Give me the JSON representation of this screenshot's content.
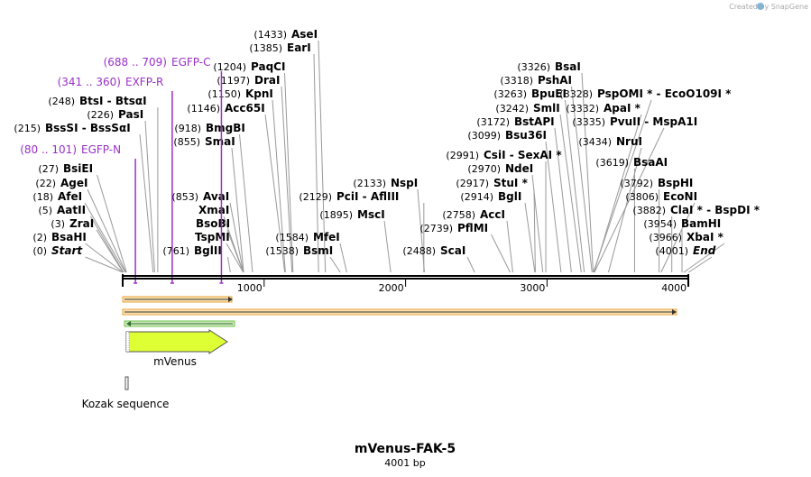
{
  "title": "mVenus-FAK-5",
  "subtitle": "4001 bp",
  "credit": "Created by SnapGene",
  "sequence_length": 4001,
  "axis_ticks": [
    "1000",
    "2000",
    "3000",
    "4000"
  ],
  "axis_tick_values": [
    1000,
    2000,
    3000,
    4000
  ],
  "feature_label": "mVenus",
  "kozak_label": "Kozak sequence",
  "colors": {
    "primer": "#9b30c9",
    "feature": "#ddff33",
    "orf": "#e8a33a",
    "green": "#2e8b2e"
  },
  "sites": [
    {
      "pos": "(0)",
      "name": "Start",
      "italic": true,
      "bp": 0
    },
    {
      "pos": "(2)",
      "name": "BsaHI",
      "bp": 2
    },
    {
      "pos": "(3)",
      "name": "ZraI",
      "bp": 3
    },
    {
      "pos": "(5)",
      "name": "AatII",
      "bp": 5
    },
    {
      "pos": "(18)",
      "name": "AfeI",
      "bp": 18
    },
    {
      "pos": "(22)",
      "name": "AgeI",
      "bp": 22
    },
    {
      "pos": "(27)",
      "name": "BsiEI",
      "bp": 27
    },
    {
      "pos": "(215)",
      "name": "BssSI - BssSαI",
      "bp": 215
    },
    {
      "pos": "(226)",
      "name": "PasI",
      "bp": 226
    },
    {
      "pos": "(248)",
      "name": "BtsI - BtsαI",
      "bp": 248
    },
    {
      "pos": "(761)",
      "name": "BglII",
      "bp": 761
    },
    {
      "pos": "(853)",
      "name": "AvaI",
      "bp": 853
    },
    {
      "pos": "",
      "name": "XmaI",
      "bp": 853
    },
    {
      "pos": "",
      "name": "BsoBI",
      "bp": 853
    },
    {
      "pos": "",
      "name": "TspMI",
      "bp": 853
    },
    {
      "pos": "(855)",
      "name": "SmaI",
      "bp": 855
    },
    {
      "pos": "(918)",
      "name": "BmgBI",
      "bp": 918
    },
    {
      "pos": "(1146)",
      "name": "Acc65I",
      "bp": 1146
    },
    {
      "pos": "(1150)",
      "name": "KpnI",
      "bp": 1150
    },
    {
      "pos": "(1197)",
      "name": "DraI",
      "bp": 1197
    },
    {
      "pos": "(1204)",
      "name": "PaqCI",
      "bp": 1204
    },
    {
      "pos": "(1385)",
      "name": "EarI",
      "bp": 1385
    },
    {
      "pos": "(1433)",
      "name": "AseI",
      "bp": 1433
    },
    {
      "pos": "(1538)",
      "name": "BsmI",
      "bp": 1538
    },
    {
      "pos": "(1584)",
      "name": "MfeI",
      "bp": 1584
    },
    {
      "pos": "(1895)",
      "name": "MscI",
      "bp": 1895
    },
    {
      "pos": "(2129)",
      "name": "PciI - AflIII",
      "bp": 2129
    },
    {
      "pos": "(2133)",
      "name": "NspI",
      "bp": 2133
    },
    {
      "pos": "(2488)",
      "name": "ScaI",
      "bp": 2488
    },
    {
      "pos": "(2739)",
      "name": "PflMI",
      "bp": 2739
    },
    {
      "pos": "(2758)",
      "name": "AccI",
      "bp": 2758
    },
    {
      "pos": "(2914)",
      "name": "BglI",
      "bp": 2914
    },
    {
      "pos": "(2917)",
      "name": "StuI *",
      "bp": 2917
    },
    {
      "pos": "(2970)",
      "name": "NdeI",
      "bp": 2970
    },
    {
      "pos": "(2991)",
      "name": "CsiI - SexAI *",
      "bp": 2991
    },
    {
      "pos": "(3099)",
      "name": "Bsu36I",
      "bp": 3099
    },
    {
      "pos": "(3172)",
      "name": "BstAPI",
      "bp": 3172
    },
    {
      "pos": "(3242)",
      "name": "SmlI",
      "bp": 3242
    },
    {
      "pos": "(3263)",
      "name": "BpuEI",
      "bp": 3263
    },
    {
      "pos": "(3318)",
      "name": "PshAI",
      "bp": 3318
    },
    {
      "pos": "(3326)",
      "name": "BsaI",
      "bp": 3326
    },
    {
      "pos": "(3328)",
      "name": "PspOMI * - EcoO109I *",
      "bp": 3328
    },
    {
      "pos": "(3332)",
      "name": "ApaI *",
      "bp": 3332
    },
    {
      "pos": "(3335)",
      "name": "PvuII - MspA1I",
      "bp": 3335
    },
    {
      "pos": "(3434)",
      "name": "NruI",
      "bp": 3434
    },
    {
      "pos": "(3619)",
      "name": "BsaAI",
      "bp": 3619
    },
    {
      "pos": "(3792)",
      "name": "BspHI",
      "bp": 3792
    },
    {
      "pos": "(3806)",
      "name": "EcoNI",
      "bp": 3806
    },
    {
      "pos": "(3882)",
      "name": "ClaI * - BspDI *",
      "bp": 3882
    },
    {
      "pos": "(3954)",
      "name": "BamHI",
      "bp": 3954
    },
    {
      "pos": "(3966)",
      "name": "XbaI *",
      "bp": 3966
    },
    {
      "pos": "(4001)",
      "name": "End",
      "italic": true,
      "bp": 4001
    }
  ],
  "primers": [
    {
      "range": "(80 .. 101)",
      "name": "EGFP-N",
      "bp": 90
    },
    {
      "range": "(341 .. 360)",
      "name": "EXFP-R",
      "bp": 350
    },
    {
      "range": "(688 .. 709)",
      "name": "EGFP-C",
      "bp": 698
    }
  ]
}
